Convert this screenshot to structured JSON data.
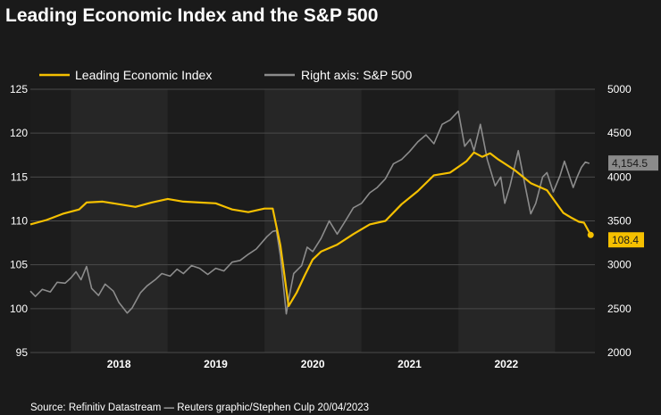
{
  "title": "Leading Economic Index and the S&P 500",
  "source": "Source: Refinitiv Datastream — Reuters graphic/Stephen Culp 20/04/2023",
  "chart_data": {
    "type": "line",
    "x_range": [
      "2017-08-01",
      "2023-05-31"
    ],
    "x_ticks": [
      {
        "label": "2018",
        "date": "2018-07-01"
      },
      {
        "label": "2019",
        "date": "2019-07-01"
      },
      {
        "label": "2020",
        "date": "2020-07-01"
      },
      {
        "label": "2021",
        "date": "2021-07-01"
      },
      {
        "label": "2022",
        "date": "2022-07-01"
      }
    ],
    "year_bands": [
      {
        "start": "2018-01-01",
        "end": "2019-01-01",
        "shade": "light"
      },
      {
        "start": "2019-01-01",
        "end": "2020-01-01",
        "shade": "dark"
      },
      {
        "start": "2020-01-01",
        "end": "2021-01-01",
        "shade": "light"
      },
      {
        "start": "2021-01-01",
        "end": "2022-01-01",
        "shade": "dark"
      },
      {
        "start": "2022-01-01",
        "end": "2023-01-01",
        "shade": "light"
      },
      {
        "start": "2023-01-01",
        "end": "2023-05-31",
        "shade": "dark"
      }
    ],
    "left_axis": {
      "min": 95,
      "max": 125,
      "ticks": [
        95,
        100,
        105,
        110,
        115,
        120,
        125
      ]
    },
    "right_axis": {
      "min": 2000,
      "max": 5000,
      "ticks": [
        2000,
        2500,
        3000,
        3500,
        4000,
        4500,
        5000
      ]
    },
    "series": [
      {
        "name": "Leading Economic Index",
        "axis": "left",
        "color": "#f5c000",
        "end_label": "108.4",
        "points": [
          [
            "2017-08-01",
            109.6
          ],
          [
            "2017-10-01",
            110.1
          ],
          [
            "2017-12-01",
            110.8
          ],
          [
            "2018-02-01",
            111.3
          ],
          [
            "2018-03-01",
            112.1
          ],
          [
            "2018-05-01",
            112.2
          ],
          [
            "2018-07-01",
            111.9
          ],
          [
            "2018-09-01",
            111.6
          ],
          [
            "2018-11-01",
            112.1
          ],
          [
            "2019-01-01",
            112.5
          ],
          [
            "2019-03-01",
            112.2
          ],
          [
            "2019-05-01",
            112.1
          ],
          [
            "2019-07-01",
            112.0
          ],
          [
            "2019-09-01",
            111.3
          ],
          [
            "2019-11-01",
            111.0
          ],
          [
            "2020-01-01",
            111.4
          ],
          [
            "2020-02-01",
            111.4
          ],
          [
            "2020-03-01",
            107.2
          ],
          [
            "2020-04-01",
            100.3
          ],
          [
            "2020-05-01",
            101.8
          ],
          [
            "2020-06-01",
            103.8
          ],
          [
            "2020-07-01",
            105.6
          ],
          [
            "2020-08-01",
            106.5
          ],
          [
            "2020-10-01",
            107.3
          ],
          [
            "2020-12-01",
            108.5
          ],
          [
            "2021-02-01",
            109.6
          ],
          [
            "2021-04-01",
            110.0
          ],
          [
            "2021-06-01",
            111.9
          ],
          [
            "2021-08-01",
            113.4
          ],
          [
            "2021-10-01",
            115.2
          ],
          [
            "2021-12-01",
            115.5
          ],
          [
            "2022-02-01",
            116.8
          ],
          [
            "2022-03-01",
            117.8
          ],
          [
            "2022-04-01",
            117.3
          ],
          [
            "2022-05-01",
            117.7
          ],
          [
            "2022-06-01",
            117.0
          ],
          [
            "2022-08-01",
            115.8
          ],
          [
            "2022-10-01",
            114.3
          ],
          [
            "2022-12-01",
            113.5
          ],
          [
            "2023-02-01",
            110.9
          ],
          [
            "2023-03-01",
            110.4
          ],
          [
            "2023-04-01",
            109.9
          ],
          [
            "2023-04-20",
            109.8
          ],
          [
            "2023-05-15",
            108.4
          ]
        ]
      },
      {
        "name": "Right axis: S&P 500",
        "axis": "right",
        "color": "#8c8c8c",
        "end_label": "4,154.5",
        "points": [
          [
            "2017-08-01",
            2700
          ],
          [
            "2017-08-20",
            2640
          ],
          [
            "2017-09-15",
            2720
          ],
          [
            "2017-10-15",
            2690
          ],
          [
            "2017-11-10",
            2800
          ],
          [
            "2017-12-10",
            2790
          ],
          [
            "2018-01-01",
            2850
          ],
          [
            "2018-01-20",
            2920
          ],
          [
            "2018-02-08",
            2830
          ],
          [
            "2018-03-01",
            2980
          ],
          [
            "2018-03-20",
            2730
          ],
          [
            "2018-04-15",
            2650
          ],
          [
            "2018-05-10",
            2780
          ],
          [
            "2018-06-10",
            2700
          ],
          [
            "2018-07-01",
            2570
          ],
          [
            "2018-08-01",
            2450
          ],
          [
            "2018-08-20",
            2510
          ],
          [
            "2018-09-20",
            2680
          ],
          [
            "2018-10-15",
            2760
          ],
          [
            "2018-11-15",
            2830
          ],
          [
            "2018-12-10",
            2900
          ],
          [
            "2019-01-10",
            2870
          ],
          [
            "2019-02-05",
            2950
          ],
          [
            "2019-03-01",
            2900
          ],
          [
            "2019-04-01",
            2990
          ],
          [
            "2019-05-01",
            2960
          ],
          [
            "2019-06-01",
            2890
          ],
          [
            "2019-07-01",
            2960
          ],
          [
            "2019-08-01",
            2930
          ],
          [
            "2019-09-01",
            3030
          ],
          [
            "2019-10-01",
            3050
          ],
          [
            "2019-11-01",
            3120
          ],
          [
            "2019-12-01",
            3180
          ],
          [
            "2020-01-10",
            3320
          ],
          [
            "2020-02-01",
            3380
          ],
          [
            "2020-02-15",
            3390
          ],
          [
            "2020-03-01",
            3100
          ],
          [
            "2020-03-23",
            2440
          ],
          [
            "2020-04-01",
            2600
          ],
          [
            "2020-04-20",
            2900
          ],
          [
            "2020-05-20",
            2990
          ],
          [
            "2020-06-10",
            3200
          ],
          [
            "2020-07-01",
            3150
          ],
          [
            "2020-08-01",
            3300
          ],
          [
            "2020-09-01",
            3500
          ],
          [
            "2020-10-01",
            3350
          ],
          [
            "2020-11-01",
            3500
          ],
          [
            "2020-12-01",
            3650
          ],
          [
            "2021-01-01",
            3700
          ],
          [
            "2021-02-01",
            3820
          ],
          [
            "2021-03-01",
            3880
          ],
          [
            "2021-04-01",
            3980
          ],
          [
            "2021-05-01",
            4150
          ],
          [
            "2021-06-01",
            4200
          ],
          [
            "2021-07-01",
            4290
          ],
          [
            "2021-08-01",
            4400
          ],
          [
            "2021-09-01",
            4480
          ],
          [
            "2021-10-01",
            4380
          ],
          [
            "2021-11-01",
            4600
          ],
          [
            "2021-12-01",
            4650
          ],
          [
            "2022-01-01",
            4750
          ],
          [
            "2022-01-25",
            4350
          ],
          [
            "2022-02-15",
            4430
          ],
          [
            "2022-03-01",
            4300
          ],
          [
            "2022-03-25",
            4600
          ],
          [
            "2022-04-20",
            4200
          ],
          [
            "2022-05-20",
            3900
          ],
          [
            "2022-06-10",
            4000
          ],
          [
            "2022-06-25",
            3700
          ],
          [
            "2022-07-15",
            3900
          ],
          [
            "2022-08-15",
            4300
          ],
          [
            "2022-09-10",
            3900
          ],
          [
            "2022-10-01",
            3580
          ],
          [
            "2022-10-20",
            3700
          ],
          [
            "2022-11-15",
            4000
          ],
          [
            "2022-12-01",
            4050
          ],
          [
            "2022-12-25",
            3830
          ],
          [
            "2023-01-20",
            4020
          ],
          [
            "2023-02-05",
            4180
          ],
          [
            "2023-03-10",
            3880
          ],
          [
            "2023-03-25",
            4000
          ],
          [
            "2023-04-10",
            4110
          ],
          [
            "2023-04-25",
            4170
          ],
          [
            "2023-05-10",
            4154.5
          ]
        ]
      }
    ],
    "legend": {
      "placement": "top-left",
      "entries": [
        "Leading Economic Index",
        "Right axis: S&P 500"
      ]
    },
    "grid": true,
    "colors": {
      "background": "#1a1a1a",
      "band_light": "#262626",
      "band_dark": "#1c1c1c",
      "grid": "#4a4a4a",
      "lei": "#f5c000",
      "sp500": "#8c8c8c",
      "sp500_label_bg": "#8a8a8a",
      "lei_label_bg": "#f5c000"
    }
  }
}
